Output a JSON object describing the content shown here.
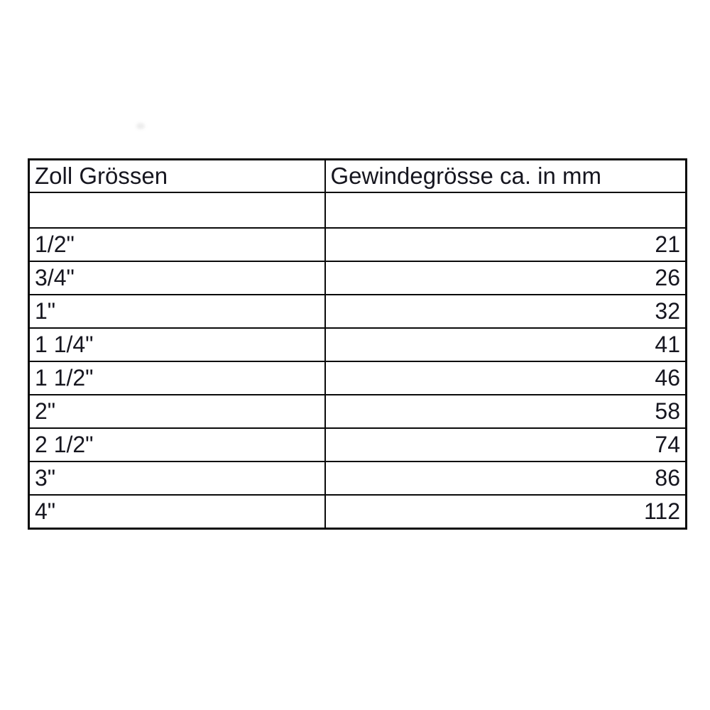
{
  "table": {
    "headers": [
      "Zoll Grössen",
      "Gewindegrösse ca. in mm"
    ],
    "rows": [
      {
        "zoll": "",
        "mm": ""
      },
      {
        "zoll": "1/2\"",
        "mm": "21"
      },
      {
        "zoll": "3/4\"",
        "mm": "26"
      },
      {
        "zoll": "1\"",
        "mm": "32"
      },
      {
        "zoll": "1 1/4\"",
        "mm": "41"
      },
      {
        "zoll": "1 1/2\"",
        "mm": "46"
      },
      {
        "zoll": "2\"",
        "mm": "58"
      },
      {
        "zoll": "2 1/2\"",
        "mm": "74"
      },
      {
        "zoll": "3\"",
        "mm": "86"
      },
      {
        "zoll": "4\"",
        "mm": "112"
      }
    ],
    "colors": {
      "border": "#0a0a0a",
      "text": "#16161f",
      "background": "#ffffff"
    }
  }
}
